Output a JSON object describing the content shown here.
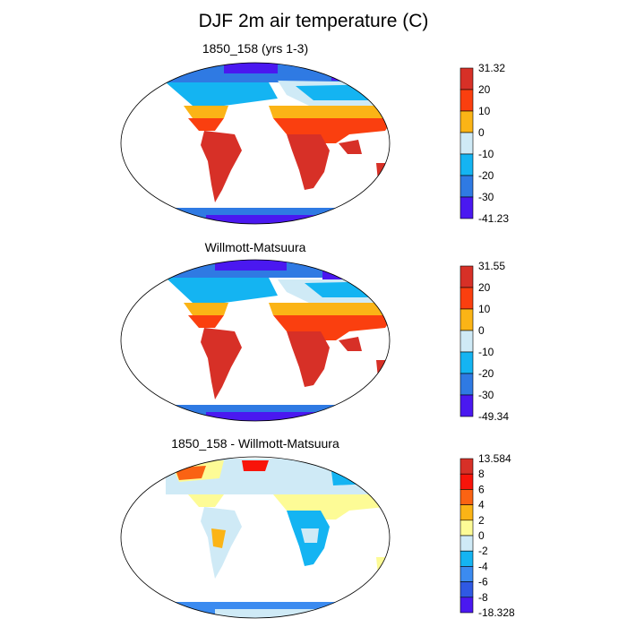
{
  "figure": {
    "title": "DJF 2m air temperature (C)"
  },
  "panels": [
    {
      "title": "1850_158 (yrs 1-3)",
      "colorbar": {
        "labels": [
          "31.32",
          "20",
          "10",
          "0",
          "-10",
          "-20",
          "-30",
          "-41.23"
        ],
        "colors": [
          "#d73027",
          "#fa3f0f",
          "#fbb416",
          "#cfeaf6",
          "#14b4f2",
          "#2f7ae3",
          "#4a18f0"
        ]
      }
    },
    {
      "title": "Willmott-Matsuura",
      "colorbar": {
        "labels": [
          "31.55",
          "20",
          "10",
          "0",
          "-10",
          "-20",
          "-30",
          "-49.34"
        ],
        "colors": [
          "#d73027",
          "#fa3f0f",
          "#fbb416",
          "#cfeaf6",
          "#14b4f2",
          "#2f7ae3",
          "#4a18f0"
        ]
      }
    },
    {
      "title": "1850_158 - Willmott-Matsuura",
      "colorbar": {
        "labels": [
          "13.584",
          "8",
          "6",
          "4",
          "2",
          "0",
          "-2",
          "-4",
          "-6",
          "-8",
          "-18.328"
        ],
        "colors": [
          "#d73027",
          "#f8140a",
          "#fa6313",
          "#fbb416",
          "#fdfb96",
          "#cfeaf6",
          "#14b4f2",
          "#3b8bf0",
          "#2f59e3",
          "#4a18f0"
        ]
      }
    }
  ]
}
